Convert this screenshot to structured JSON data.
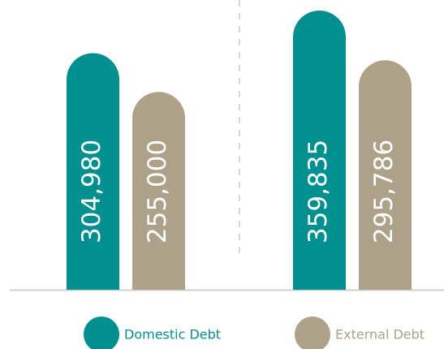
{
  "chart_data": {
    "type": "bar",
    "categories": [
      null,
      null
    ],
    "series": [
      {
        "name": "Domestic Debt",
        "color": "#00908f",
        "values": [
          304980,
          359835
        ],
        "value_labels": [
          "304,980",
          "359,835"
        ]
      },
      {
        "name": "External Debt",
        "color": "#ada18a",
        "values": [
          255000,
          295786
        ],
        "value_labels": [
          "255,000",
          "295,786"
        ]
      }
    ]
  }
}
